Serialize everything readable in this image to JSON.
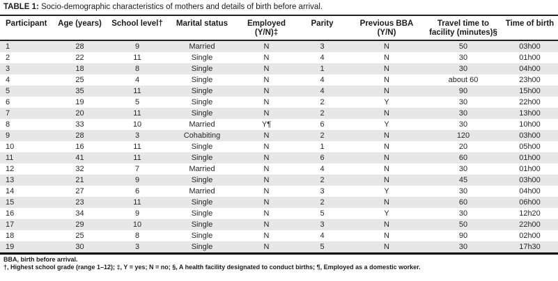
{
  "title": {
    "label": "TABLE 1:",
    "text": " Socio-demographic characteristics of mothers and details of birth before arrival."
  },
  "table": {
    "columns": [
      "Participant",
      "Age (years)",
      "School level†",
      "Marital status",
      "Employed (Y/N)‡",
      "Parity",
      "Previous BBA (Y/N)",
      "Travel time to facility (minutes)§",
      "Time of birth"
    ],
    "rows": [
      [
        "1",
        "28",
        "9",
        "Married",
        "N",
        "3",
        "N",
        "50",
        "03h00"
      ],
      [
        "2",
        "22",
        "11",
        "Single",
        "N",
        "4",
        "N",
        "30",
        "01h00"
      ],
      [
        "3",
        "18",
        "8",
        "Single",
        "N",
        "1",
        "N",
        "30",
        "04h00"
      ],
      [
        "4",
        "25",
        "4",
        "Single",
        "N",
        "4",
        "N",
        "about 60",
        "23h00"
      ],
      [
        "5",
        "35",
        "11",
        "Single",
        "N",
        "4",
        "N",
        "90",
        "15h00"
      ],
      [
        "6",
        "19",
        "5",
        "Single",
        "N",
        "2",
        "Y",
        "30",
        "22h00"
      ],
      [
        "7",
        "20",
        "11",
        "Single",
        "N",
        "2",
        "N",
        "30",
        "13h00"
      ],
      [
        "8",
        "33",
        "10",
        "Married",
        "Y¶",
        "6",
        "Y",
        "30",
        "10h00"
      ],
      [
        "9",
        "28",
        "3",
        "Cohabiting",
        "N",
        "2",
        "N",
        "120",
        "03h00"
      ],
      [
        "10",
        "16",
        "11",
        "Single",
        "N",
        "1",
        "N",
        "20",
        "05h00"
      ],
      [
        "11",
        "41",
        "11",
        "Single",
        "N",
        "6",
        "N",
        "60",
        "01h00"
      ],
      [
        "12",
        "32",
        "7",
        "Married",
        "N",
        "4",
        "N",
        "30",
        "01h00"
      ],
      [
        "13",
        "21",
        "9",
        "Single",
        "N",
        "2",
        "N",
        "45",
        "03h00"
      ],
      [
        "14",
        "27",
        "6",
        "Married",
        "N",
        "3",
        "Y",
        "30",
        "04h00"
      ],
      [
        "15",
        "23",
        "11",
        "Single",
        "N",
        "2",
        "N",
        "60",
        "06h00"
      ],
      [
        "16",
        "34",
        "9",
        "Single",
        "N",
        "5",
        "Y",
        "30",
        "12h20"
      ],
      [
        "17",
        "29",
        "10",
        "Single",
        "N",
        "3",
        "N",
        "50",
        "22h00"
      ],
      [
        "18",
        "25",
        "8",
        "Single",
        "N",
        "4",
        "N",
        "90",
        "02h00"
      ],
      [
        "19",
        "30",
        "3",
        "Single",
        "N",
        "5",
        "N",
        "30",
        "17h30"
      ]
    ]
  },
  "footnotes": [
    "BBA, birth before arrival.",
    "†, Highest school grade (range 1–12); ‡, Y = yes; N = no; §, A health facility designated to conduct births; ¶, Employed as a domestic worker."
  ],
  "colors": {
    "row_stripe": "#e7e7e7",
    "rule": "#1f1f1f",
    "bottom_rule": "#000000"
  }
}
